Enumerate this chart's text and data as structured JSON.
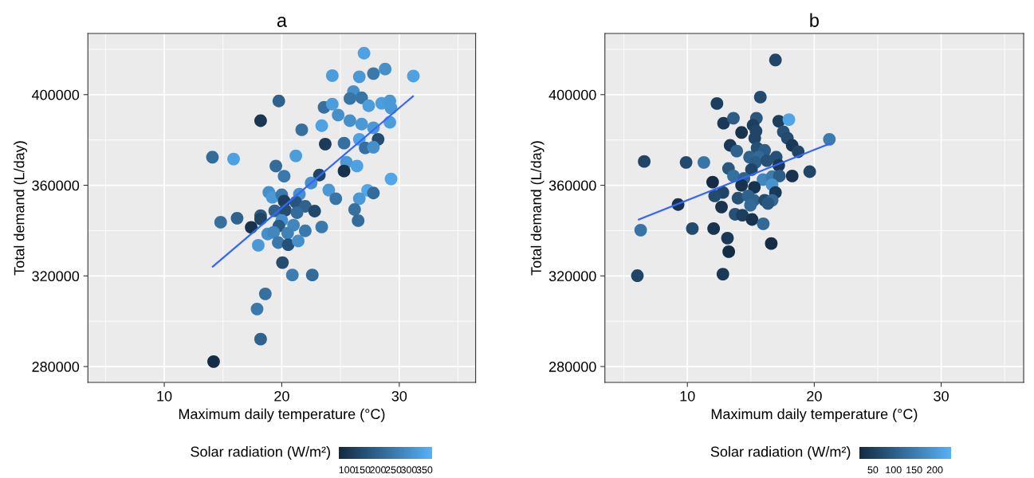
{
  "chart_data": [
    {
      "type": "scatter",
      "title": "a",
      "xlabel": "Maximum daily temperature (°C)",
      "ylabel": "Total demand (L/day)",
      "clabel": "Solar radiation (W/m²)",
      "xlim": [
        3.5,
        36.5
      ],
      "ylim": [
        273000,
        427000
      ],
      "xticks": [
        10,
        20,
        30
      ],
      "yticks": [
        280000,
        320000,
        360000,
        400000
      ],
      "clim": [
        75,
        375
      ],
      "cticks": [
        100,
        150,
        200,
        250,
        300,
        350
      ],
      "grid": true,
      "series": [
        {
          "marker": "circle",
          "x": [
            27.0,
            24.3,
            26.6,
            27.8,
            28.8,
            31.2,
            19.75,
            26.1,
            25.8,
            26.8,
            27.4,
            23.6,
            24.3,
            28.5,
            29.2,
            29.3,
            24.8,
            18.2,
            25.8,
            26.8,
            29.2,
            23.4,
            21.7,
            27.8,
            28.2,
            26.6,
            23.7,
            25.3,
            27.1,
            27.8,
            14.1,
            15.9,
            21.2,
            19.5,
            25.5,
            26.4,
            25.3,
            20.2,
            23.2,
            29.3,
            22.5,
            24.0,
            27.3,
            24.6,
            26.6,
            27.8,
            18.9,
            19.2,
            20.0,
            21.5,
            20.2,
            21.2,
            22.0,
            22.8,
            26.2,
            19.4,
            20.3,
            21.3,
            18.2,
            14.8,
            16.2,
            20.0,
            26.5,
            17.4,
            18.2,
            19.75,
            21.0,
            23.4,
            18.8,
            19.3,
            20.5,
            22.0,
            18.0,
            19.7,
            20.55,
            21.4,
            20.06,
            20.9,
            22.6,
            18.6,
            17.9,
            18.2,
            14.2
          ],
          "values": [
            418300,
            408400,
            407900,
            409300,
            411300,
            408200,
            397200,
            401400,
            398300,
            398600,
            395100,
            394400,
            395800,
            396200,
            397200,
            394100,
            391000,
            388500,
            388500,
            387000,
            387800,
            386300,
            384500,
            385400,
            380300,
            380300,
            378200,
            378600,
            376500,
            376800,
            372400,
            371600,
            373000,
            368500,
            370200,
            368500,
            366300,
            364000,
            364500,
            362800,
            361000,
            357900,
            357800,
            354100,
            354100,
            356600,
            356900,
            354700,
            355800,
            356100,
            353000,
            352500,
            350700,
            348600,
            349300,
            348700,
            349000,
            347900,
            346600,
            343700,
            345500,
            344500,
            344400,
            341400,
            345100,
            342000,
            342400,
            341600,
            338500,
            339200,
            338900,
            339900,
            333500,
            334700,
            333800,
            335400,
            325900,
            320400,
            320400,
            312100,
            305400,
            292100,
            282200
          ],
          "colors": [
            "#4ea1e2",
            "#4c9ddc",
            "#4a98d6",
            "#3a79ac",
            "#4590ca",
            "#4ea1e2",
            "#2f638e",
            "#4590ca",
            "#3875a6",
            "#3875a6",
            "#4c9ddc",
            "#3670a0",
            "#4c9ddc",
            "#4c9ddc",
            "#4a98d6",
            "#4a98d6",
            "#4590ca",
            "#193652",
            "#4590ca",
            "#4a98d6",
            "#4c9ddc",
            "#4ea1e2",
            "#3670a0",
            "#4a98d6",
            "#244d70",
            "#4ea1e2",
            "#1b3b58",
            "#3670a0",
            "#3670a0",
            "#4590ca",
            "#336c9a",
            "#4ea1e2",
            "#4c9ddc",
            "#336c9a",
            "#4a98d6",
            "#4ea1e2",
            "#16324c",
            "#3a79ac",
            "#1f4464",
            "#50a6e8",
            "#4590ca",
            "#4a98d6",
            "#50a6e8",
            "#3875a6",
            "#4a98d6",
            "#336c9a",
            "#4590ca",
            "#4a98d6",
            "#3a79ac",
            "#4590ca",
            "#1d3f5e",
            "#28557c",
            "#2f638e",
            "#22486a",
            "#3670a0",
            "#2f638e",
            "#244d70",
            "#336c9a",
            "#2a5a82",
            "#3670a0",
            "#2f638e",
            "#4590ca",
            "#336c9a",
            "#16324c",
            "#1f4464",
            "#2a5a82",
            "#4187be",
            "#3a79ac",
            "#4590ca",
            "#4187be",
            "#3f82b8",
            "#3a79ac",
            "#4a98d6",
            "#3a79ac",
            "#265176",
            "#4590ca",
            "#244d70",
            "#3c7eb2",
            "#336c9a",
            "#3670a0",
            "#3a79ac",
            "#2f638e",
            "#142d46"
          ]
        },
        {
          "type": "line",
          "color": "#3366ff",
          "x": [
            14.13,
            31.17
          ],
          "values": [
            324100,
            399300
          ]
        }
      ]
    },
    {
      "type": "scatter",
      "title": "b",
      "xlabel": "Maximum daily temperature (°C)",
      "ylabel": "Total demand (L/day)",
      "clabel": "Solar radiation (W/m²)",
      "xlim": [
        3.5,
        36.5
      ],
      "ylim": [
        273000,
        427000
      ],
      "xticks": [
        10,
        20,
        30
      ],
      "yticks": [
        280000,
        320000,
        360000,
        400000
      ],
      "clim": [
        17,
        240
      ],
      "cticks": [
        50,
        100,
        150,
        200
      ],
      "grid": true,
      "series": [
        {
          "marker": "circle",
          "x": [
            16.94,
            12.33,
            15.75,
            12.85,
            13.63,
            15.44,
            15.18,
            17.2,
            18.0,
            14.27,
            15.41,
            17.56,
            15.31,
            17.88,
            21.19,
            13.37,
            13.89,
            18.26,
            18.73,
            15.49,
            16.09,
            14.9,
            15.62,
            17.0,
            6.6,
            9.9,
            11.3,
            15.36,
            16.27,
            17.2,
            13.24,
            15.05,
            19.64,
            13.63,
            14.46,
            15.96,
            16.68,
            17.25,
            18.26,
            11.99,
            14.27,
            15.28,
            16.68,
            16.94,
            12.8,
            12.15,
            13.99,
            14.79,
            15.23,
            14.97,
            16.09,
            16.68,
            16.35,
            9.27,
            12.69,
            13.76,
            14.33,
            15.1,
            15.98,
            6.32,
            10.39,
            12.07,
            13.16,
            16.61,
            13.26,
            12.8,
            6.06
          ],
          "values": [
            415300,
            396100,
            398900,
            387400,
            389600,
            389600,
            386500,
            388300,
            389000,
            383300,
            383900,
            383600,
            380800,
            380800,
            380300,
            377600,
            375100,
            377600,
            374800,
            376400,
            375400,
            372400,
            372400,
            372400,
            370500,
            370100,
            370100,
            370100,
            370900,
            368800,
            367400,
            366900,
            366000,
            364100,
            363000,
            362500,
            363800,
            364100,
            364100,
            361400,
            360000,
            359100,
            360200,
            356800,
            356800,
            355300,
            354300,
            355300,
            353400,
            351200,
            353400,
            353400,
            352000,
            351500,
            350400,
            347200,
            346800,
            344900,
            343000,
            340200,
            340900,
            340900,
            336700,
            334300,
            330700,
            320800,
            320100
          ],
          "colors": [
            "#204566",
            "#1d3f5e",
            "#234b6e",
            "#1a3956",
            "#2c5d86",
            "#29577e",
            "#1d3f5e",
            "#1d3f5e",
            "#50a5e7",
            "#17334d",
            "#204566",
            "#265176",
            "#204566",
            "#234b6e",
            "#3b7bae",
            "#1a3956",
            "#2f638e",
            "#1a3956",
            "#204566",
            "#265176",
            "#2c5d86",
            "#2f638e",
            "#326996",
            "#265176",
            "#204566",
            "#234b6e",
            "#3875a6",
            "#2c5d86",
            "#265176",
            "#1a3956",
            "#29577e",
            "#204566",
            "#204566",
            "#356f9e",
            "#2f638e",
            "#4187be",
            "#3b7bae",
            "#2c5d86",
            "#17334d",
            "#142d45",
            "#17334d",
            "#17334d",
            "#4793cf",
            "#1a3956",
            "#204566",
            "#234b6e",
            "#265176",
            "#2f638e",
            "#2f638e",
            "#326996",
            "#234b6e",
            "#326996",
            "#29577e",
            "#17334d",
            "#17334d",
            "#265176",
            "#1d3f5e",
            "#17334d",
            "#326996",
            "#3875a6",
            "#234b6e",
            "#17334d",
            "#1a3956",
            "#142d45",
            "#142d45",
            "#1a3956",
            "#204566"
          ]
        },
        {
          "type": "line",
          "color": "#3366ff",
          "x": [
            6.17,
            21.19
          ],
          "values": [
            344900,
            378300
          ]
        }
      ]
    }
  ]
}
